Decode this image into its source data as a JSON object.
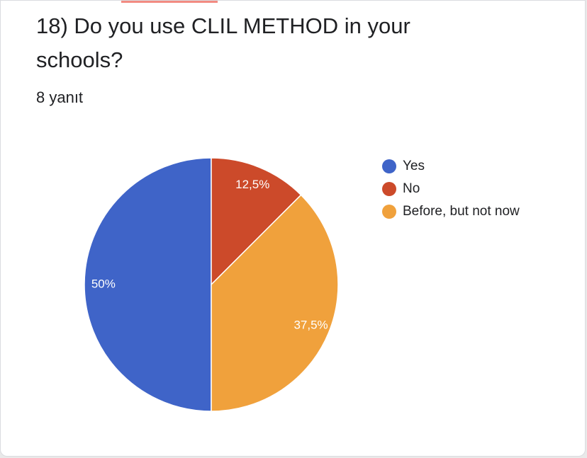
{
  "question": {
    "title": "18) Do you use CLIL METHOD in your schools?",
    "response_count": "8 yanıt"
  },
  "colors": {
    "accent": "#f28b82"
  },
  "chart_data": {
    "type": "pie",
    "slices": [
      {
        "label": "Yes",
        "value": 50,
        "display": "50%",
        "color": "#3f64c8"
      },
      {
        "label": "No",
        "value": 12.5,
        "display": "12,5%",
        "color": "#cc4a2a"
      },
      {
        "label": "Before, but not now",
        "value": 37.5,
        "display": "37,5%",
        "color": "#f0a13c"
      }
    ],
    "legend_position": "right"
  }
}
